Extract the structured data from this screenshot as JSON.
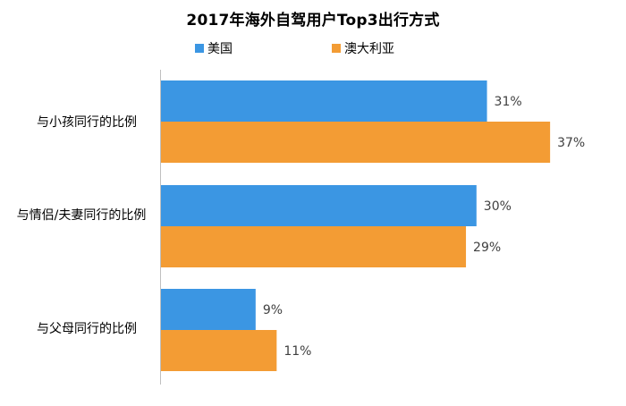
{
  "chart_data": {
    "type": "bar",
    "orientation": "horizontal",
    "title": "2017年海外自驾用户Top3出行方式",
    "categories": [
      "与小孩同行的比例",
      "与情侣/夫妻同行的比例",
      "与父母同行的比例"
    ],
    "series": [
      {
        "name": "美国",
        "color": "#3B96E3",
        "values": [
          31,
          30,
          9
        ]
      },
      {
        "name": "澳大利亚",
        "color": "#F39C34",
        "values": [
          37,
          29,
          11
        ]
      }
    ],
    "value_labels": [
      [
        "31%",
        "30%",
        "9%"
      ],
      [
        "37%",
        "29%",
        "11%"
      ]
    ],
    "xlim": [
      0,
      40
    ],
    "legend_position": "top",
    "grid": false
  }
}
